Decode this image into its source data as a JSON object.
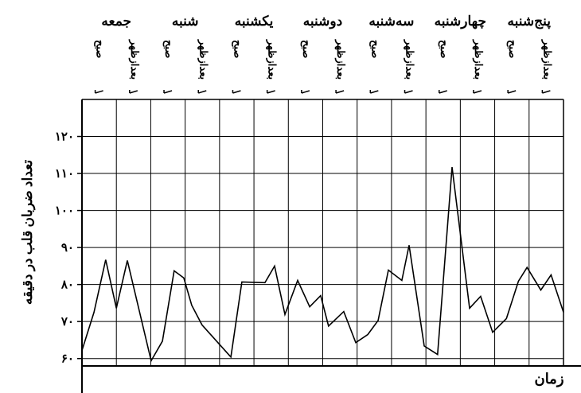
{
  "chart_data": {
    "type": "line",
    "y_label": "تعداد ضربان قلب در دقیقه",
    "x_label": "زمان",
    "categories": [
      "جمعه",
      "شنبه",
      "یکشنبه",
      "دوشنبه",
      "سه‌شنبه",
      "چهارشنبه",
      "پنج‌شنبه"
    ],
    "periods": [
      "صبح",
      "بعدازظهر",
      "صبح",
      "بعدازظهر",
      "صبح",
      "بعدازظهر",
      "صبح",
      "بعدازظهر",
      "صبح",
      "بعدازظهر",
      "صبح",
      "بعدازظهر",
      "صبح",
      "بعدازظهر"
    ],
    "x": [
      0.0,
      0.35,
      0.69,
      1.0,
      1.32,
      2.01,
      2.34,
      2.68,
      2.96,
      3.19,
      3.49,
      4.33,
      4.65,
      5.32,
      5.6,
      5.9,
      6.27,
      6.62,
      6.94,
      7.17,
      7.61,
      7.96,
      8.31,
      8.61,
      8.91,
      9.3,
      9.51,
      9.95,
      10.34,
      10.76,
      11.27,
      11.59,
      11.94,
      12.34,
      12.69,
      12.94,
      13.34,
      13.64,
      14.0
    ],
    "values": [
      62.2,
      72.5,
      86.7,
      73.6,
      86.5,
      59.4,
      64.7,
      83.7,
      81.8,
      74.4,
      69.1,
      60.4,
      80.7,
      80.5,
      85.0,
      71.9,
      81.1,
      74.0,
      77.0,
      68.8,
      72.7,
      64.3,
      66.5,
      70.3,
      83.9,
      81.1,
      90.6,
      63.4,
      61.1,
      111.7,
      73.6,
      76.8,
      67.1,
      70.8,
      80.9,
      84.6,
      78.5,
      82.6,
      72.5
    ],
    "color": "#000000",
    "xlim": [
      0,
      14
    ],
    "ylim": [
      58,
      130
    ],
    "yticks": [
      {
        "value": 60,
        "label": "۶۰"
      },
      {
        "value": 70,
        "label": "۷۰"
      },
      {
        "value": 80,
        "label": "۸۰"
      },
      {
        "value": 90,
        "label": "۹۰"
      },
      {
        "value": 100,
        "label": "۱۰۰"
      },
      {
        "value": 110,
        "label": "۱۱۰"
      },
      {
        "value": 120,
        "label": "۱۲۰"
      }
    ],
    "grid": true
  }
}
